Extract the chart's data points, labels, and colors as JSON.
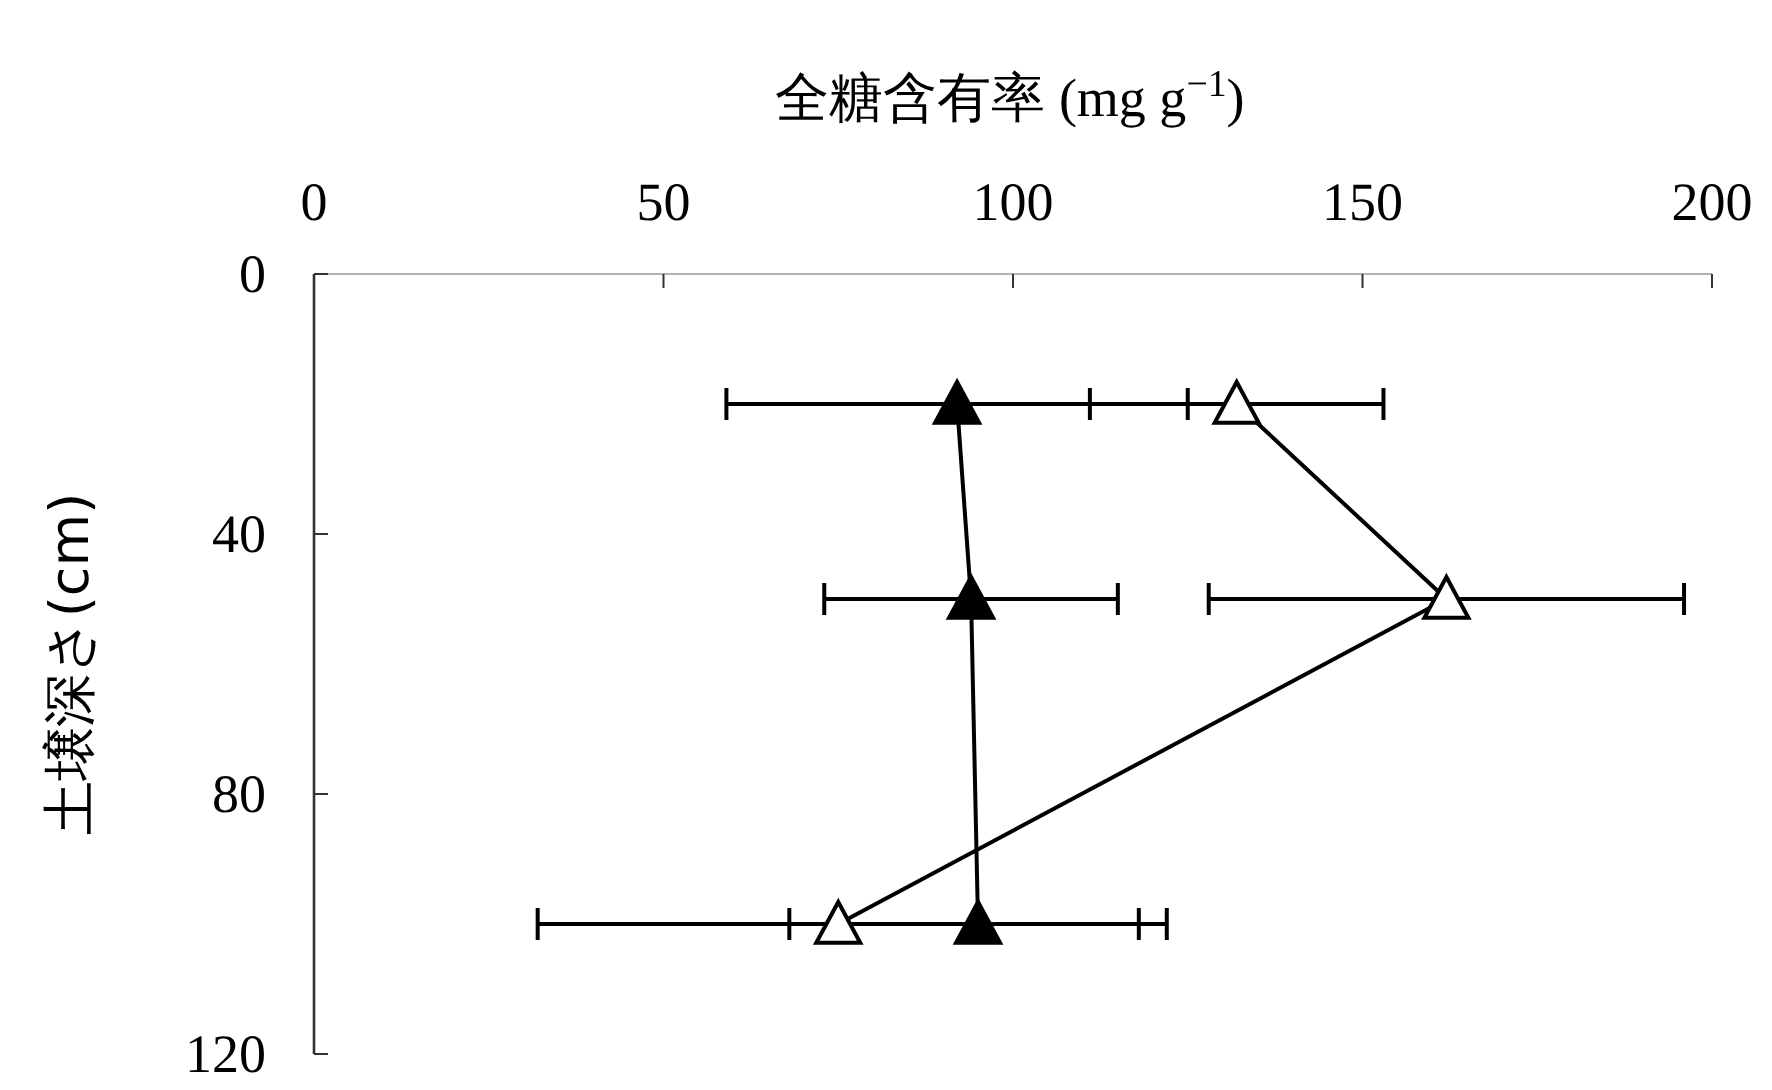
{
  "chart_data": {
    "type": "line",
    "xlabel": "全糖含有率 (mg g$^{−1}$)",
    "ylabel": "土壌深さ(cm)",
    "xlim": [
      0,
      200
    ],
    "xticks": [
      0,
      50,
      100,
      150,
      200
    ],
    "ylim": [
      120,
      0
    ],
    "yticks": [
      0,
      40,
      80,
      120
    ],
    "grid": false,
    "marker": "triangle",
    "line_style": "solid",
    "series": [
      {
        "color": "#000000",
        "x": [
          92,
          94,
          95
        ],
        "values": [
          20,
          50,
          100
        ],
        "xerrors": [
          33,
          21,
          27
        ]
      },
      {
        "color": "#ffffff",
        "x": [
          132,
          162,
          75
        ],
        "values": [
          20,
          50,
          100
        ],
        "xerrors": [
          21,
          34,
          43
        ]
      }
    ]
  }
}
